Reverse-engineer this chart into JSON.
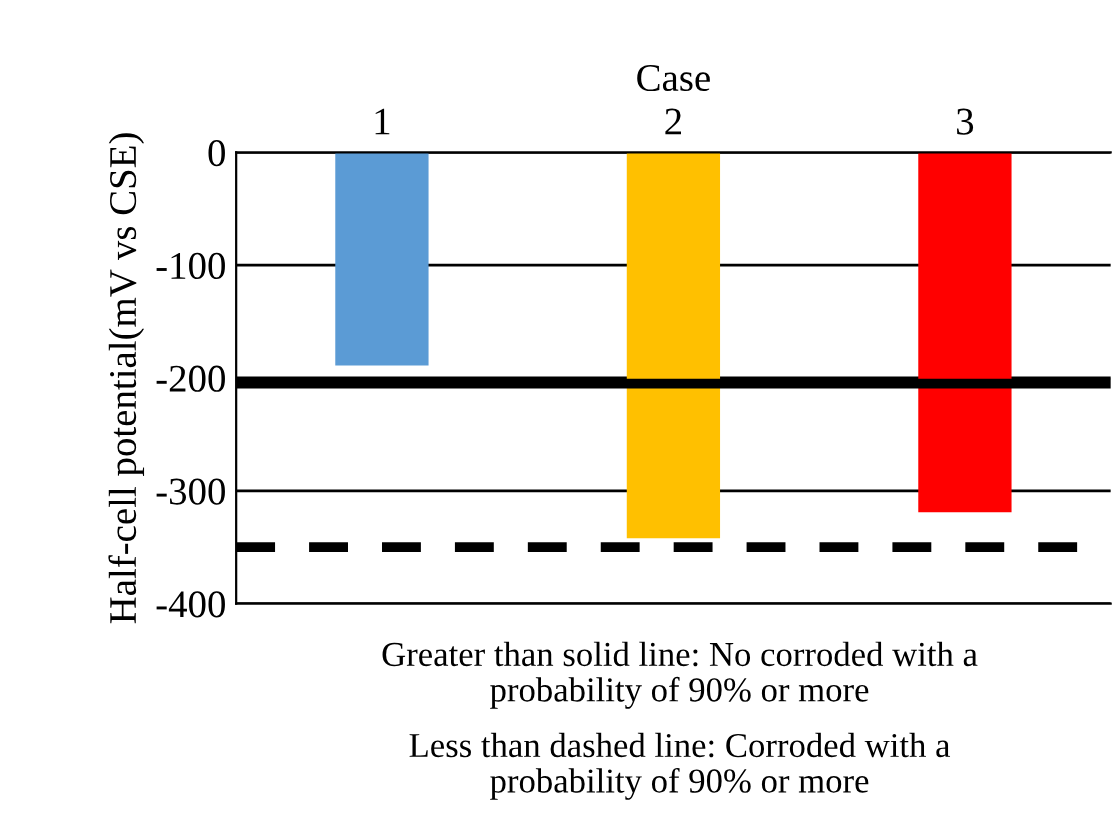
{
  "chart_data": {
    "type": "bar",
    "xlabel": "Case",
    "ylabel": "Half-cell potential(mV vs CSE)",
    "categories": [
      "1",
      "2",
      "3"
    ],
    "values": [
      -189,
      -342,
      -319
    ],
    "colors": [
      "#5b9bd5",
      "#ffc000",
      "#ff0000"
    ],
    "ylim": [
      -400,
      0
    ],
    "yticks": [
      -400,
      -300,
      -200,
      -100,
      0
    ],
    "grid": "y",
    "ref_lines": [
      {
        "axis": "y",
        "value": -205,
        "color": "#000000",
        "line_style": "solid"
      },
      {
        "axis": "y",
        "value": -350,
        "color": "#000000",
        "line_style": "dashed"
      }
    ],
    "annotations": [
      "Greater than solid line: No corroded with a\nprobability of 90% or more",
      "Less than dashed line: Corroded with a\nprobability of 90% or more"
    ]
  }
}
